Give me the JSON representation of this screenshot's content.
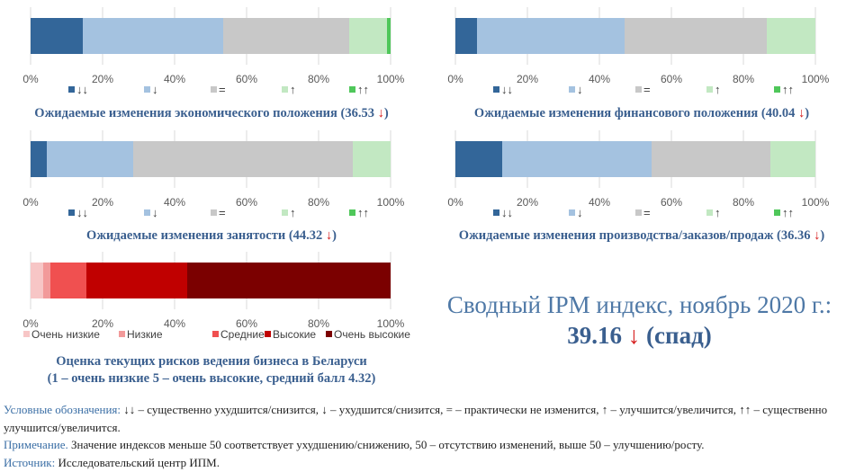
{
  "chart_data": [
    {
      "type": "bar",
      "orientation": "horizontal-stacked-100",
      "title": "Ожидаемые изменения экономического положения (36.53 ↓)",
      "index_value": "36.53",
      "trend_arrow": "↓",
      "categories": [
        "↓↓",
        "↓",
        "=",
        "↑",
        "↑↑"
      ],
      "colors": [
        "#336699",
        "#a4c2e0",
        "#c8c8c8",
        "#c2e8c2",
        "#4fc75a"
      ],
      "values": [
        14.5,
        39,
        35,
        10.5,
        1
      ],
      "xticks": [
        "0%",
        "20%",
        "40%",
        "60%",
        "80%",
        "100%"
      ],
      "xlim": [
        0,
        100
      ],
      "legend": "bottom",
      "grid": true
    },
    {
      "type": "bar",
      "orientation": "horizontal-stacked-100",
      "title": "Ожидаемые изменения финансового положения (40.04 ↓)",
      "index_value": "40.04",
      "trend_arrow": "↓",
      "categories": [
        "↓↓",
        "↓",
        "=",
        "↑",
        "↑↑"
      ],
      "colors": [
        "#336699",
        "#a4c2e0",
        "#c8c8c8",
        "#c2e8c2",
        "#4fc75a"
      ],
      "values": [
        6,
        41,
        39.5,
        13.5,
        0
      ],
      "xticks": [
        "0%",
        "20%",
        "40%",
        "60%",
        "80%",
        "100%"
      ],
      "xlim": [
        0,
        100
      ],
      "legend": "bottom",
      "grid": true
    },
    {
      "type": "bar",
      "orientation": "horizontal-stacked-100",
      "title": "Ожидаемые изменения занятости (44.32 ↓)",
      "index_value": "44.32",
      "trend_arrow": "↓",
      "categories": [
        "↓↓",
        "↓",
        "=",
        "↑",
        "↑↑"
      ],
      "colors": [
        "#336699",
        "#a4c2e0",
        "#c8c8c8",
        "#c2e8c2",
        "#4fc75a"
      ],
      "values": [
        4.5,
        24,
        61,
        10.5,
        0
      ],
      "xticks": [
        "0%",
        "20%",
        "40%",
        "60%",
        "80%",
        "100%"
      ],
      "xlim": [
        0,
        100
      ],
      "legend": "bottom",
      "grid": true
    },
    {
      "type": "bar",
      "orientation": "horizontal-stacked-100",
      "title": "Ожидаемые изменения производства/заказов/продаж (36.36 ↓)",
      "index_value": "36.36",
      "trend_arrow": "↓",
      "categories": [
        "↓↓",
        "↓",
        "=",
        "↑",
        "↑↑"
      ],
      "colors": [
        "#336699",
        "#a4c2e0",
        "#c8c8c8",
        "#c2e8c2",
        "#4fc75a"
      ],
      "values": [
        13,
        41.5,
        33,
        12.5,
        0
      ],
      "xticks": [
        "0%",
        "20%",
        "40%",
        "60%",
        "80%",
        "100%"
      ],
      "xlim": [
        0,
        100
      ],
      "legend": "bottom",
      "grid": true
    },
    {
      "type": "bar",
      "orientation": "horizontal-stacked-100",
      "title": "Оценка текущих рисков ведения бизнеса в Беларуси",
      "subtitle": "(1 – очень низкие 5 – очень высокие, средний балл 4.32)",
      "categories": [
        "Очень низкие",
        "Низкие",
        "Средние",
        "Высокие",
        "Очень высокие"
      ],
      "colors": [
        "#f7c6c6",
        "#f29a9a",
        "#f05050",
        "#c00000",
        "#7b0000"
      ],
      "values": [
        3.5,
        2,
        10,
        28,
        56.5
      ],
      "xticks": [
        "0%",
        "20%",
        "40%",
        "60%",
        "80%",
        "100%"
      ],
      "xlim": [
        0,
        100
      ],
      "legend": "bottom",
      "grid": true
    }
  ],
  "summary": {
    "line1": "Сводный IPM индекс, ноябрь 2020 г.:",
    "value": "39.16",
    "arrow": "↓",
    "status": "(спад)"
  },
  "notes": {
    "legend_label": "Условные обозначения:",
    "legend_text": "↓↓ – существенно ухудшится/снизится, ↓ – ухудшится/снизится, = – практически не изменится, ↑ – улучшится/увеличится, ↑↑ – существенно улучшится/увеличится.",
    "note_label": "Примечание.",
    "note_text": "Значение индексов меньше 50 соответствует ухудшению/снижению, 50 – отсутствию изменений, выше 50 – улучшению/росту.",
    "source_label": "Источник:",
    "source_text": "Исследовательский центр ИПМ."
  },
  "captions": {
    "c0_text": "Ожидаемые изменения экономического положения (36.53",
    "c0_arrow": "↓",
    "c0_end": ")",
    "c1_text": "Ожидаемые изменения финансового положения (40.04",
    "c1_arrow": "↓",
    "c1_end": ")",
    "c2_text": "Ожидаемые изменения занятости (44.32",
    "c2_arrow": "↓",
    "c2_end": ")",
    "c3_text": "Ожидаемые изменения производства/заказов/продаж (36.36",
    "c3_arrow": "↓",
    "c3_end": ")",
    "risk_title": "Оценка текущих рисков ведения бизнеса в Беларуси",
    "risk_subtitle": "(1 – очень низкие 5 – очень высокие, средний балл 4.32)"
  }
}
